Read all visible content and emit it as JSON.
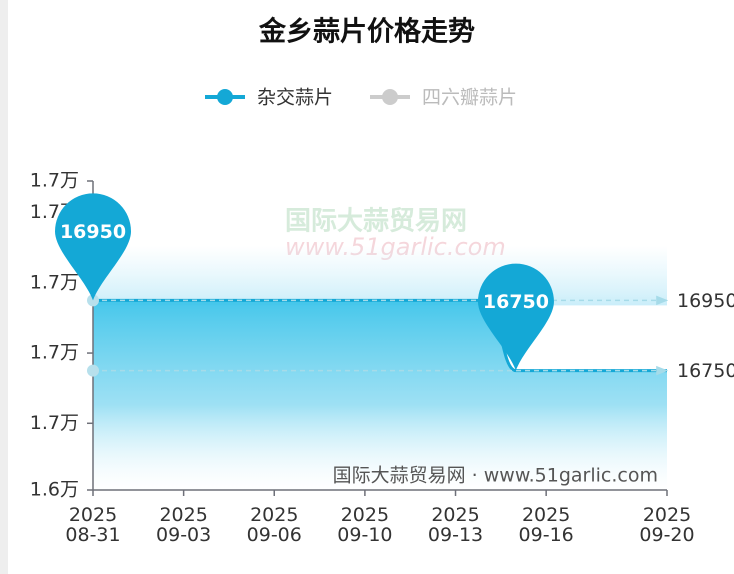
{
  "chart_data": {
    "type": "line",
    "title": "金乡蒜片价格走势",
    "categories": [
      "2025\n08-31",
      null,
      null,
      "2025\n09-03",
      null,
      null,
      "2025\n09-06",
      null,
      null,
      "2025\n09-10",
      null,
      null,
      "2025\n09-13",
      null,
      null,
      "2025\n09-16",
      null,
      null,
      null,
      "2025\n09-20"
    ],
    "series": [
      {
        "name": "杂交蒜片",
        "color": "#14a8d6",
        "values": [
          16950,
          16950,
          16950,
          16950,
          16950,
          16950,
          16950,
          16950,
          16950,
          16950,
          16950,
          16950,
          16950,
          16950,
          16750,
          16750,
          16750,
          16750,
          16750,
          16750
        ]
      },
      {
        "name": "四六瓣蒜片",
        "color": "#cccccc",
        "hidden": true
      }
    ],
    "mark_lines": [
      16950,
      16750
    ],
    "ylim": [
      16410,
      17290
    ],
    "yticks": [
      {
        "value": 16410,
        "label": "1.6万"
      },
      {
        "value": 16600,
        "label": "1.7万"
      },
      {
        "value": 16800,
        "label": "1.7万"
      },
      {
        "value": 17000,
        "label": "1.7万"
      },
      {
        "value": 17200,
        "label": "1.7万"
      },
      {
        "value": 17290,
        "label": "1.7万"
      }
    ],
    "watermark": {
      "name": "国际大蒜贸易网",
      "url": "www.51garlic.com"
    },
    "source": "国际大蒜贸易网 · www.51garlic.com"
  }
}
